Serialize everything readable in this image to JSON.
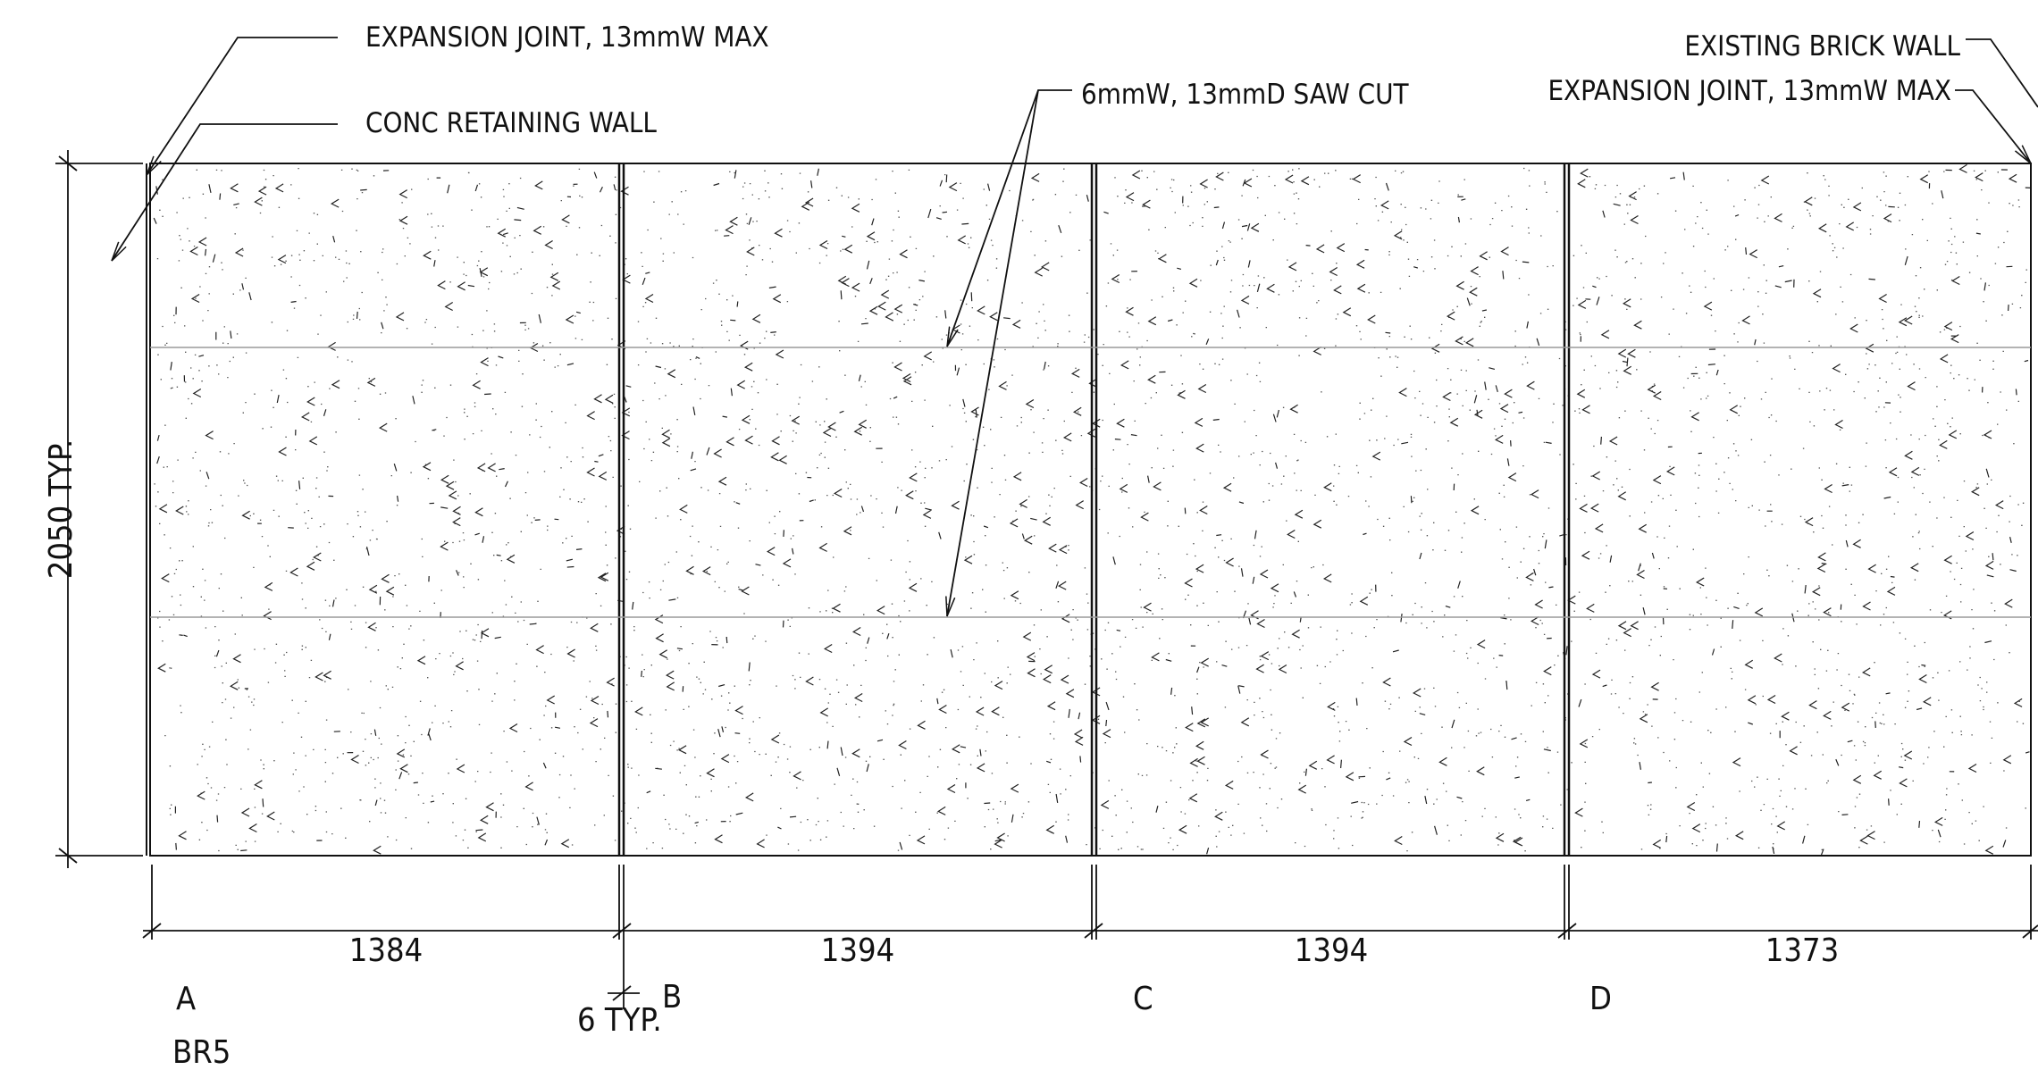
{
  "labels": {
    "expansion_joint_left": "EXPANSION JOINT, 13mmW MAX",
    "conc_retaining_wall": "CONC RETAINING WALL",
    "saw_cut": "6mmW, 13mmD SAW CUT",
    "existing_brick_wall": "EXISTING BRICK WALL",
    "expansion_joint_right": "EXPANSION JOINT, 13mmW MAX",
    "height_dim": "2050 TYP.",
    "joint_dim": "6 TYP."
  },
  "panels": [
    {
      "width": "1384",
      "letter": "A"
    },
    {
      "width": "1394",
      "letter": "B"
    },
    {
      "width": "1394",
      "letter": "C"
    },
    {
      "width": "1373",
      "letter": "D"
    }
  ],
  "reference": "BR5",
  "colors": {
    "line": "#111111",
    "saw_cut_line": "#9a9a9a",
    "background": "#ffffff"
  }
}
